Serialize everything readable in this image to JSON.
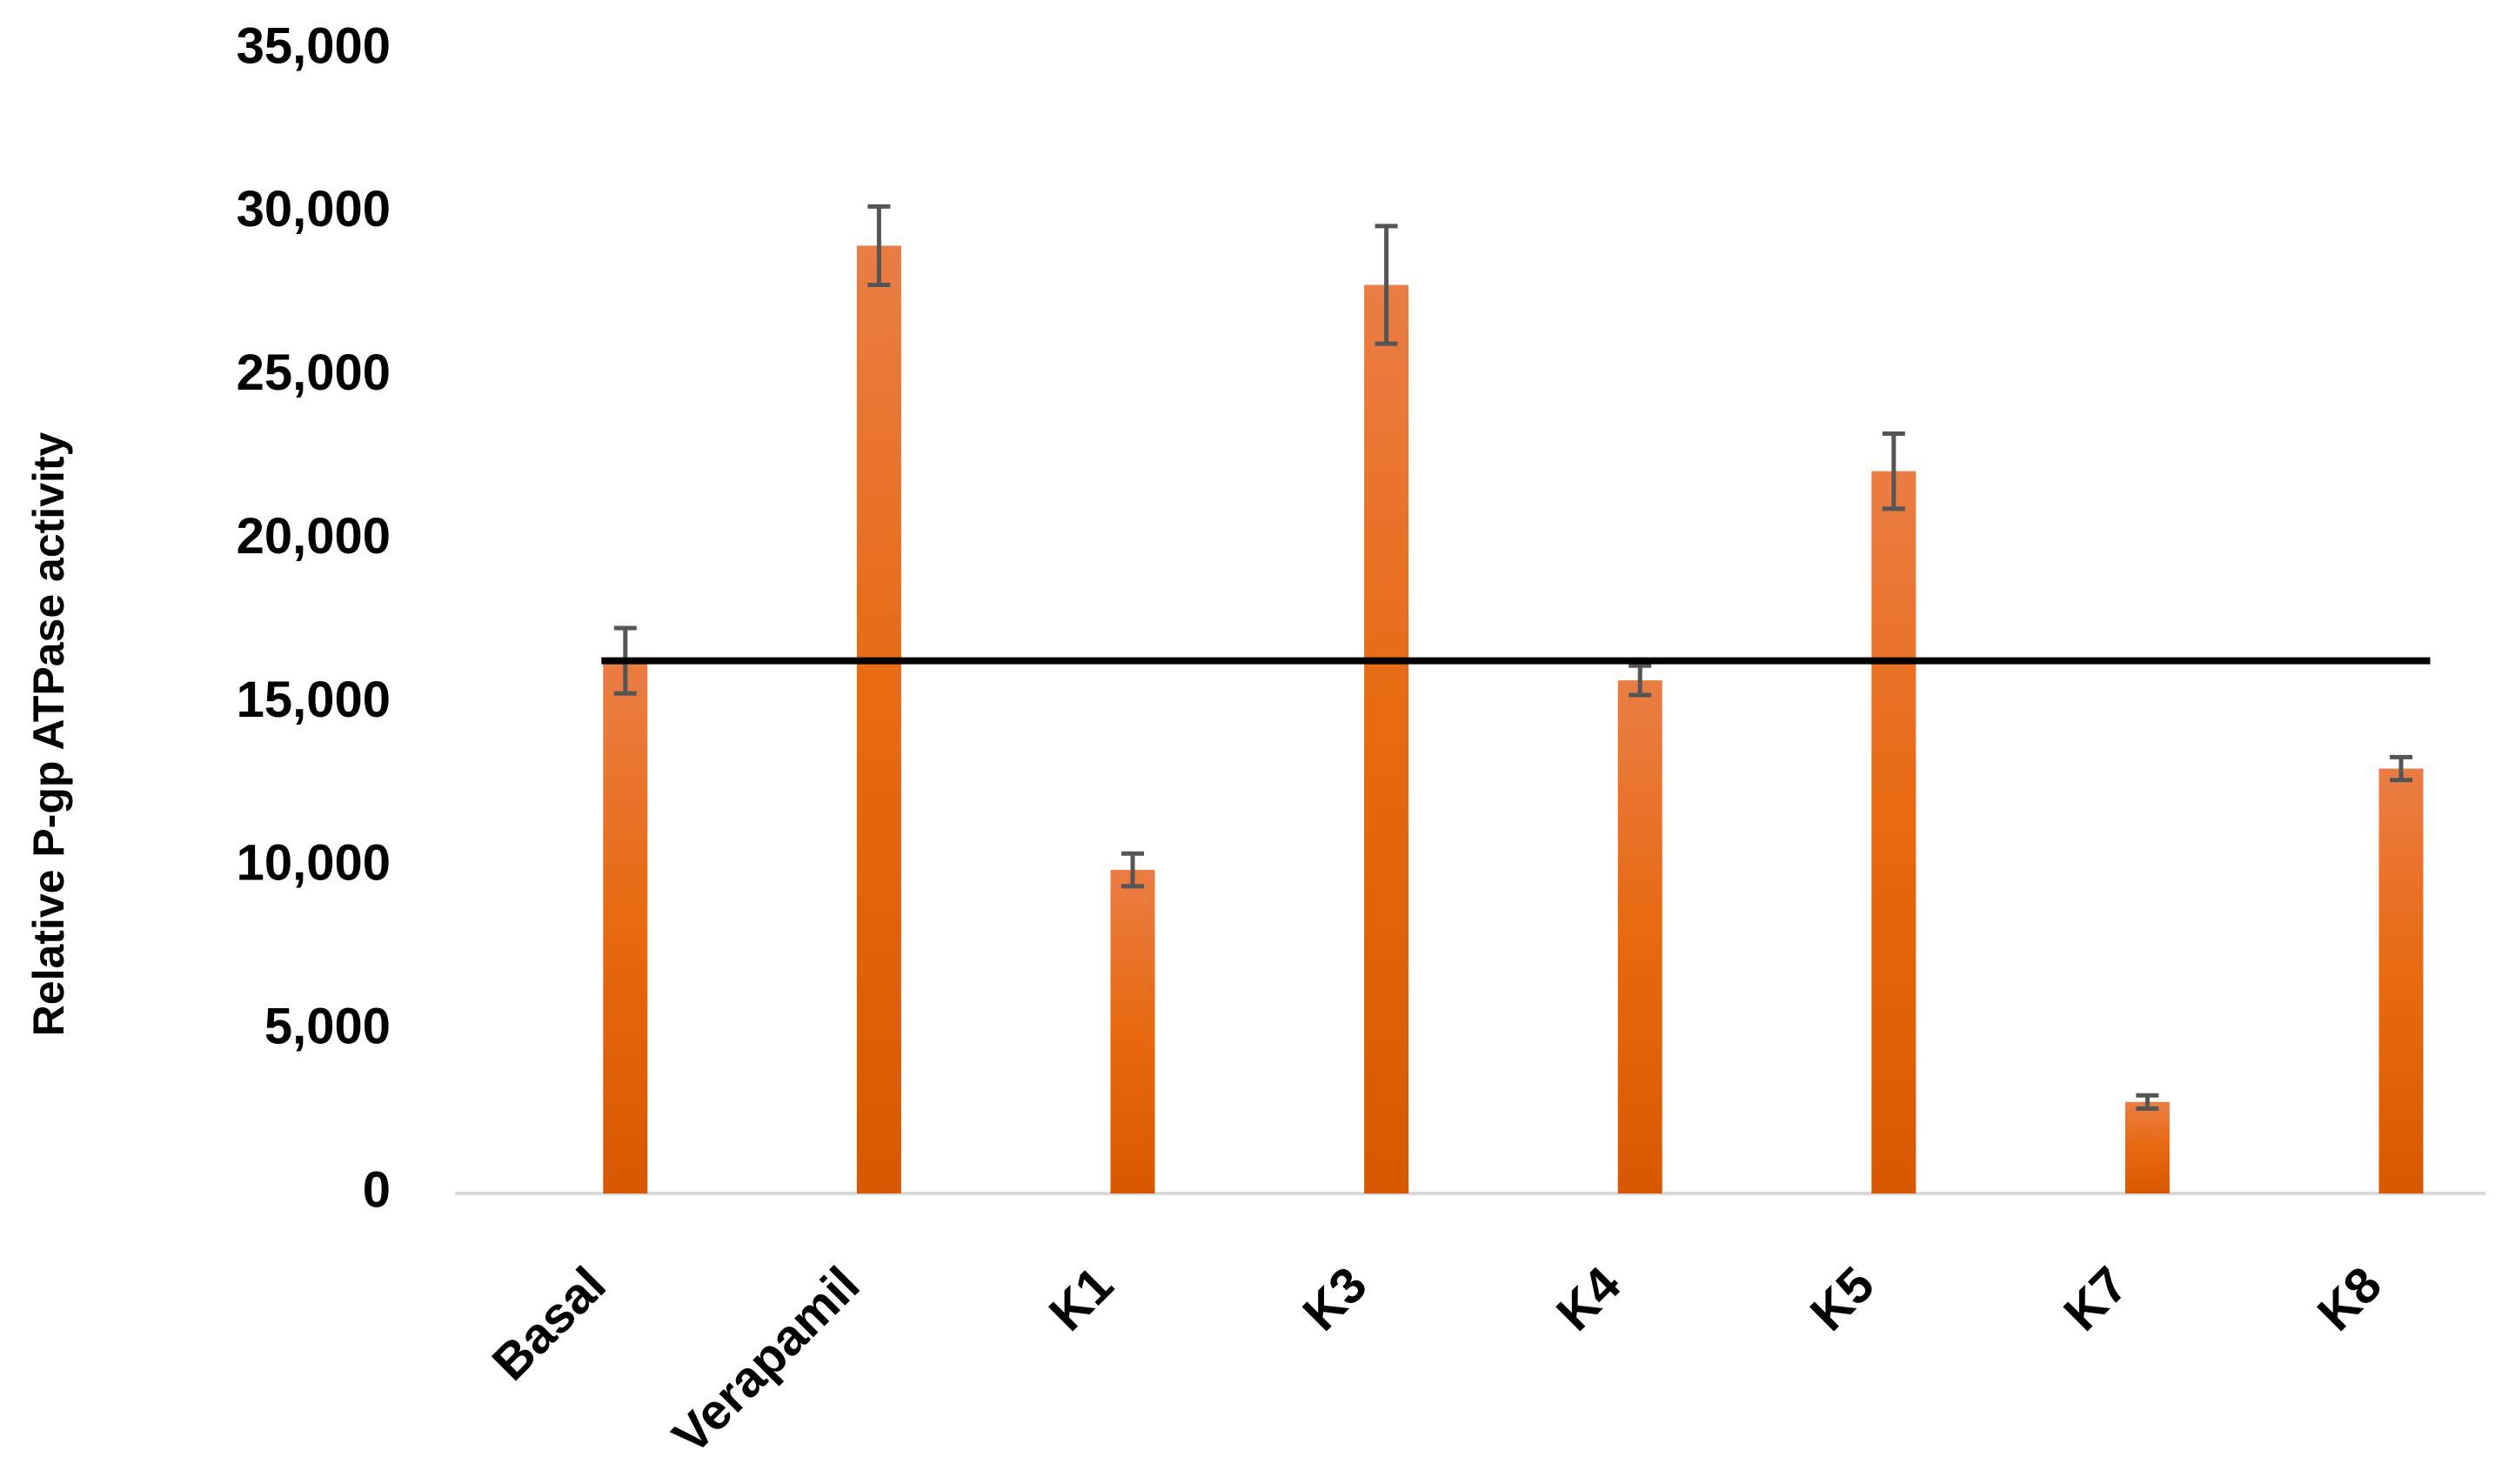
{
  "chart_data": {
    "type": "bar",
    "y_label": "Relative P-gp ATPase activity",
    "categories": [
      "Basal",
      "Verapamil",
      "K1",
      "K3",
      "K4",
      "K5",
      "K7",
      "K8"
    ],
    "values": [
      16300,
      29000,
      9900,
      27800,
      15700,
      22100,
      2800,
      13000
    ],
    "errors": [
      1000,
      1200,
      500,
      1800,
      450,
      1150,
      200,
      350
    ],
    "color": "#e46a1c",
    "error_color": "#555555",
    "reference_line": {
      "value": 16300,
      "color": "#000000"
    },
    "ylim": [
      0,
      35000
    ],
    "yticks": [
      0,
      {
        "value": 5000,
        "label": "5,000"
      },
      {
        "value": 10000,
        "label": "10,000"
      },
      {
        "value": 15000,
        "label": "15,000"
      },
      {
        "value": 20000,
        "label": "20,000"
      },
      {
        "value": 25000,
        "label": "25,000"
      },
      {
        "value": 30000,
        "label": "30,000"
      },
      {
        "value": 35000,
        "label": "35,000"
      }
    ],
    "grid": false
  }
}
